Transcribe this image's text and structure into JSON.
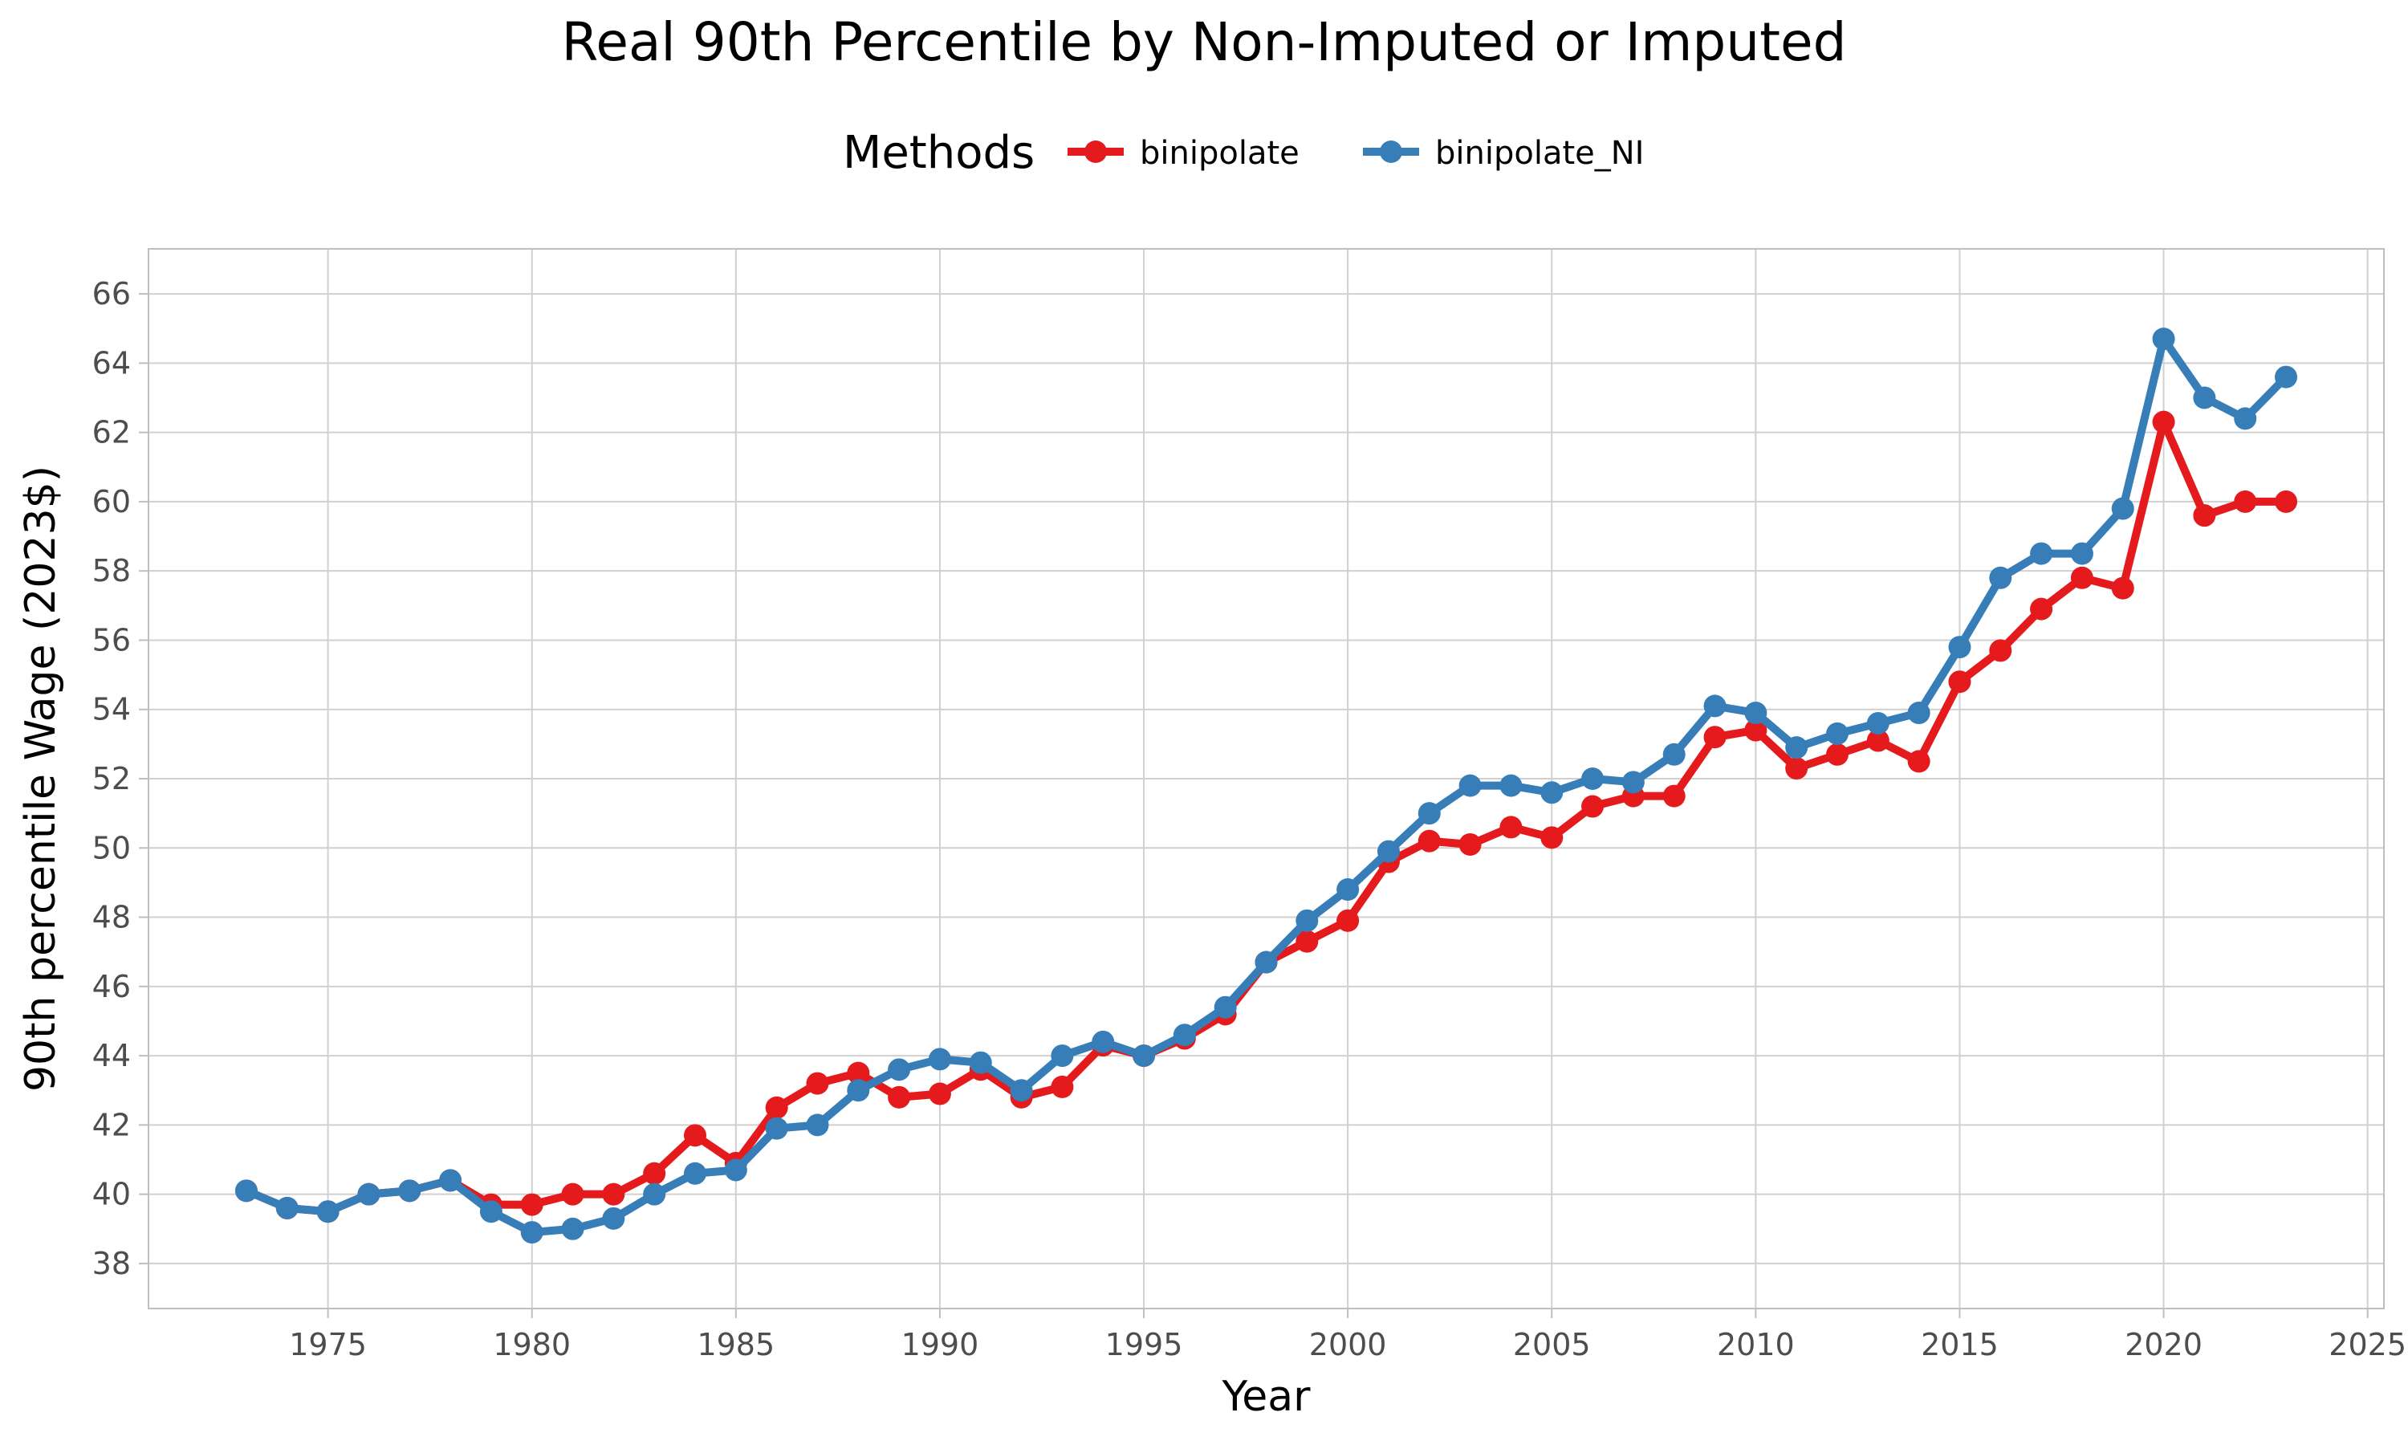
{
  "chart_data": {
    "type": "line",
    "title": "Real 90th Percentile by Non-Imputed or Imputed",
    "xlabel": "Year",
    "ylabel": "90th percentile Wage (2023$)",
    "xlim": [
      1970.6,
      2025.4
    ],
    "ylim": [
      36.7,
      67.3
    ],
    "x_ticks": [
      1975,
      1980,
      1985,
      1990,
      1995,
      2000,
      2005,
      2010,
      2015,
      2020,
      2025
    ],
    "y_ticks": [
      38,
      40,
      42,
      44,
      46,
      48,
      50,
      52,
      54,
      56,
      58,
      60,
      62,
      64,
      66
    ],
    "grid": true,
    "legend": {
      "title": "Methods",
      "position": "top"
    },
    "x": [
      1973,
      1974,
      1975,
      1976,
      1977,
      1978,
      1979,
      1980,
      1981,
      1982,
      1983,
      1984,
      1985,
      1986,
      1987,
      1988,
      1989,
      1990,
      1991,
      1992,
      1993,
      1994,
      1995,
      1996,
      1997,
      1998,
      1999,
      2000,
      2001,
      2002,
      2003,
      2004,
      2005,
      2006,
      2007,
      2008,
      2009,
      2010,
      2011,
      2012,
      2013,
      2014,
      2015,
      2016,
      2017,
      2018,
      2019,
      2020,
      2021,
      2022,
      2023
    ],
    "series": [
      {
        "name": "binipolate",
        "color": "#e41a1c",
        "values": [
          40.1,
          39.6,
          39.5,
          40.0,
          40.1,
          40.4,
          39.7,
          39.7,
          40.0,
          40.0,
          40.6,
          41.7,
          40.9,
          42.5,
          43.2,
          43.5,
          42.8,
          42.9,
          43.6,
          42.8,
          43.1,
          44.3,
          44.0,
          44.5,
          45.2,
          46.7,
          47.3,
          47.9,
          49.6,
          50.2,
          50.1,
          50.6,
          50.3,
          51.2,
          51.5,
          51.5,
          53.2,
          53.4,
          52.3,
          52.7,
          53.1,
          52.5,
          54.8,
          55.7,
          56.9,
          57.8,
          57.5,
          62.3,
          59.6,
          60.0,
          60.0
        ]
      },
      {
        "name": "binipolate_NI",
        "color": "#377eb8",
        "values": [
          40.1,
          39.6,
          39.5,
          40.0,
          40.1,
          40.4,
          39.5,
          38.9,
          39.0,
          39.3,
          40.0,
          40.6,
          40.7,
          41.9,
          42.0,
          43.0,
          43.6,
          43.9,
          43.8,
          43.0,
          44.0,
          44.4,
          44.0,
          44.6,
          45.4,
          46.7,
          47.9,
          48.8,
          49.9,
          51.0,
          51.8,
          51.8,
          51.6,
          52.0,
          51.9,
          52.7,
          54.1,
          53.9,
          52.9,
          53.3,
          53.6,
          53.9,
          55.8,
          57.8,
          58.5,
          58.5,
          59.8,
          64.7,
          63.0,
          62.4,
          63.6
        ]
      }
    ]
  }
}
